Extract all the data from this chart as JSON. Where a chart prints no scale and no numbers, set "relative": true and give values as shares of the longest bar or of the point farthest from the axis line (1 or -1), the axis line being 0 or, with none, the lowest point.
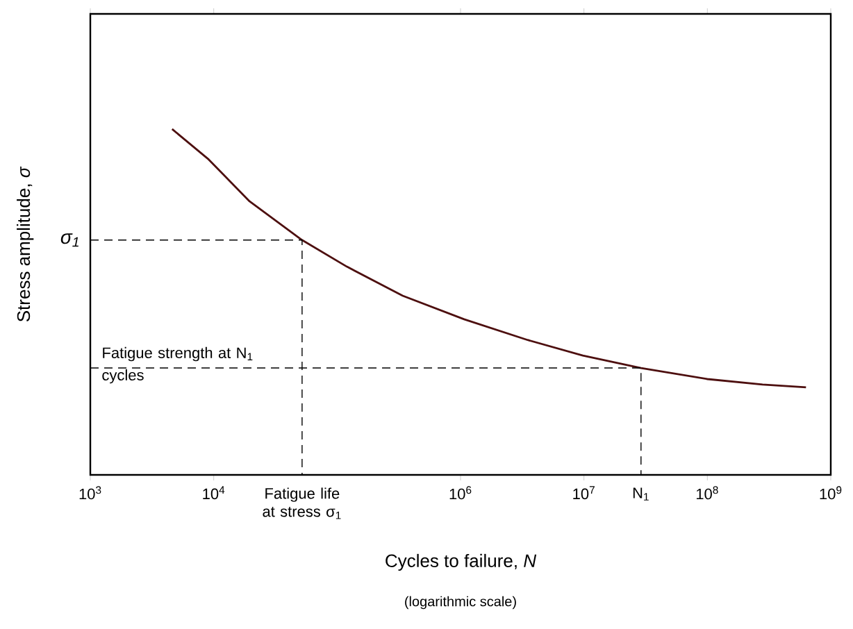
{
  "chart_data": {
    "type": "line",
    "relative": true,
    "log": "x",
    "xlabel": "Cycles to failure, *N*",
    "ylabel": "Stress amplitude, *σ*",
    "series": [
      {
        "color": "#4d0f0f",
        "x": [
          4600,
          9100,
          19500,
          52000,
          120000,
          340000,
          1070000,
          3500000,
          9800000,
          29000000,
          100000000,
          280000000,
          630000000
        ],
        "values": [
          1.0,
          0.912,
          0.791,
          0.679,
          0.602,
          0.518,
          0.45,
          0.39,
          0.345,
          0.309,
          0.277,
          0.261,
          0.253
        ]
      },
      {
        "color": "#000000",
        "line_style": "dashed",
        "x": [
          1000,
          52000,
          52000
        ],
        "values": [
          0.679,
          0.679,
          0
        ]
      },
      {
        "color": "#000000",
        "line_style": "dashed",
        "x": [
          1000,
          29000000,
          29000000
        ],
        "values": [
          0.309,
          0.309,
          0
        ]
      }
    ],
    "xlim": [
      1000,
      1000000000
    ],
    "xticks": [
      {
        "value": 1000,
        "label": "10$^{3}$"
      },
      {
        "value": 10000,
        "label": "10$^{4}$"
      },
      {
        "value": 1000000,
        "label": "10$^{6}$"
      },
      {
        "value": 10000000,
        "label": "10$^{7}$"
      },
      {
        "value": 100000000,
        "label": "10$^{8}$"
      },
      {
        "value": 1000000000,
        "label": "10$^{9}$"
      }
    ],
    "annotations": [
      "σ$_{1}$",
      "Fatigue strength at N$_{1}$ cycles",
      "N$_{1}$",
      "Fatigue life at stress σ$_{1}$",
      "(logarithmic scale)"
    ]
  }
}
